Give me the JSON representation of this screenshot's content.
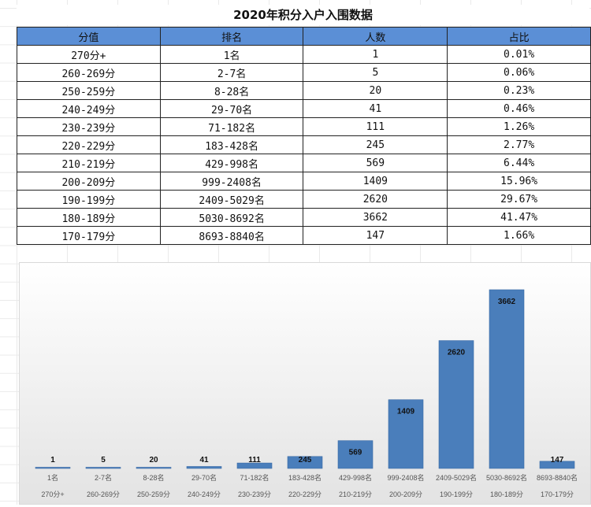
{
  "title": "2020年积分入户入围数据",
  "table": {
    "headers": [
      "分值",
      "排名",
      "人数",
      "占比"
    ],
    "rows": [
      [
        "270分+",
        "1名",
        "1",
        "0.01%"
      ],
      [
        "260-269分",
        "2-7名",
        "5",
        "0.06%"
      ],
      [
        "250-259分",
        "8-28名",
        "20",
        "0.23%"
      ],
      [
        "240-249分",
        "29-70名",
        "41",
        "0.46%"
      ],
      [
        "230-239分",
        "71-182名",
        "111",
        "1.26%"
      ],
      [
        "220-229分",
        "183-428名",
        "245",
        "2.77%"
      ],
      [
        "210-219分",
        "429-998名",
        "569",
        "6.44%"
      ],
      [
        "200-209分",
        "999-2408名",
        "1409",
        "15.96%"
      ],
      [
        "190-199分",
        "2409-5029名",
        "2620",
        "29.67%"
      ],
      [
        "180-189分",
        "5030-8692名",
        "3662",
        "41.47%"
      ],
      [
        "170-179分",
        "8693-8840名",
        "147",
        "1.66%"
      ]
    ]
  },
  "chart_data": {
    "type": "bar",
    "categories": [
      [
        "1名",
        "270分+"
      ],
      [
        "2-7名",
        "260-269分"
      ],
      [
        "8-28名",
        "250-259分"
      ],
      [
        "29-70名",
        "240-249分"
      ],
      [
        "71-182名",
        "230-239分"
      ],
      [
        "183-428名",
        "220-229分"
      ],
      [
        "429-998名",
        "210-219分"
      ],
      [
        "999-2408名",
        "200-209分"
      ],
      [
        "2409-5029名",
        "190-199分"
      ],
      [
        "5030-8692名",
        "180-189分"
      ],
      [
        "8693-8840名",
        "170-179分"
      ]
    ],
    "values": [
      1,
      5,
      20,
      41,
      111,
      245,
      569,
      1409,
      2620,
      3662,
      147
    ],
    "bar_color": "#4a7ebb",
    "data_labels": true,
    "grid": false,
    "legend": "none"
  }
}
